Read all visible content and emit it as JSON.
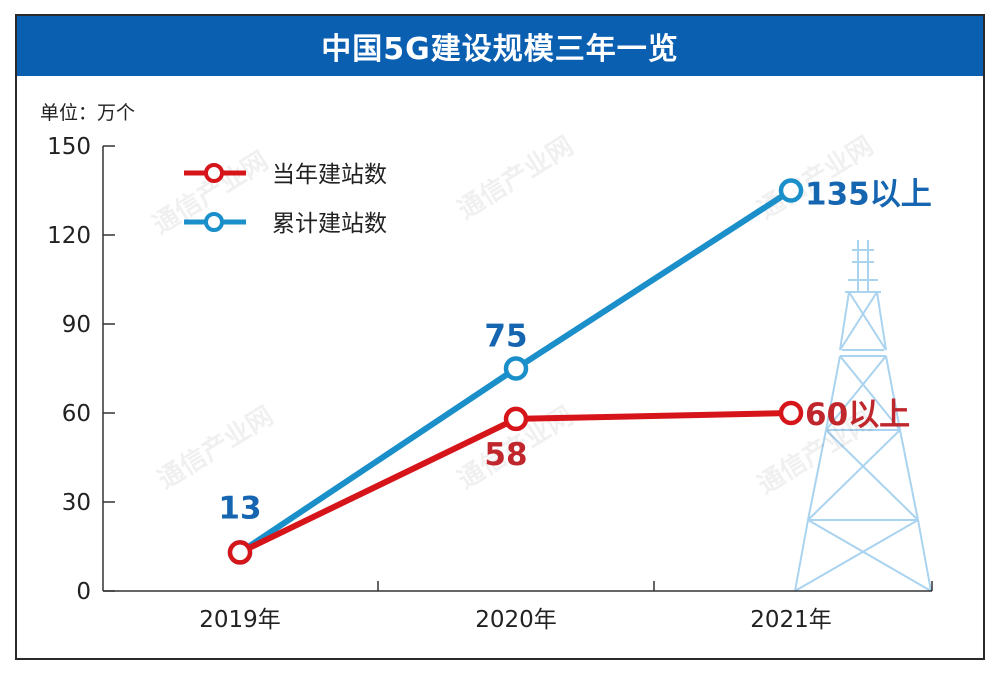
{
  "title": "中国5G建设规模三年一览",
  "unit_label": "单位：万个",
  "colors": {
    "title_bg": "#0a5fb1",
    "annual": "#d6151b",
    "cumulative": "#1a8fc9",
    "annual_label": "#c0272d",
    "cumulative_label": "#1565b0",
    "tower": "#a9d3ef"
  },
  "watermark_text": "通信产业网",
  "chart_data": {
    "type": "line",
    "categories": [
      "2019年",
      "2020年",
      "2021年"
    ],
    "yticks": [
      "0",
      "30",
      "60",
      "90",
      "120",
      "150"
    ],
    "ylim": [
      0,
      150
    ],
    "grid": false,
    "legend_position": "top-left",
    "series": [
      {
        "name": "当年建站数",
        "values": [
          13,
          58,
          60
        ],
        "labels": [
          "",
          "58",
          "60以上"
        ]
      },
      {
        "name": "累计建站数",
        "values": [
          13,
          75,
          135
        ],
        "labels": [
          "13",
          "75",
          "135以上"
        ]
      }
    ]
  }
}
